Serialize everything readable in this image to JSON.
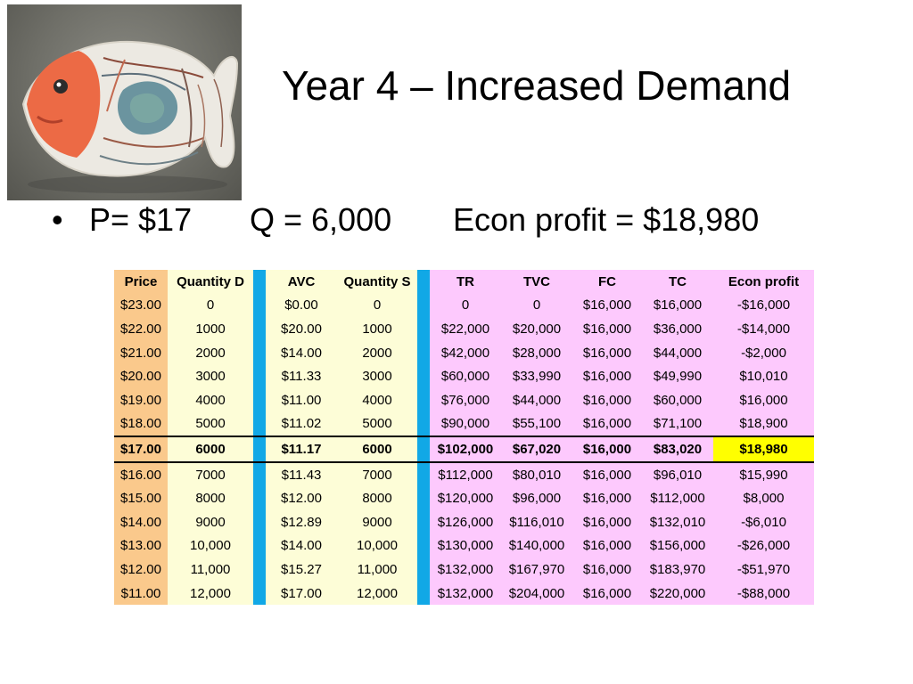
{
  "slide": {
    "title": "Year 4 – Increased Demand",
    "image_name": "ceramic-fish-sculpture"
  },
  "bullet": {
    "marker": "•",
    "price": "P= $17",
    "quantity": "Q = 6,000",
    "profit": "Econ profit = $18,980"
  },
  "table": {
    "headers": {
      "price": "Price",
      "qd": "Quantity D",
      "avc": "AVC",
      "qs": "Quantity S",
      "tr": "TR",
      "tvc": "TVC",
      "fc": "FC",
      "tc": "TC",
      "profit": "Econ profit"
    },
    "highlight_row": 6,
    "colors": {
      "price_column": "#fac98c",
      "light_columns": "#fdfdd7",
      "separator": "#11a8e6",
      "cost_columns": "#fdc9fd",
      "highlight": "#ffff00"
    },
    "rows": [
      {
        "price": "$23.00",
        "qd": "0",
        "avc": "$0.00",
        "qs": "0",
        "tr": "0",
        "tvc": "0",
        "fc": "$16,000",
        "tc": "$16,000",
        "profit": "-$16,000"
      },
      {
        "price": "$22.00",
        "qd": "1000",
        "avc": "$20.00",
        "qs": "1000",
        "tr": "$22,000",
        "tvc": "$20,000",
        "fc": "$16,000",
        "tc": "$36,000",
        "profit": "-$14,000"
      },
      {
        "price": "$21.00",
        "qd": "2000",
        "avc": "$14.00",
        "qs": "2000",
        "tr": "$42,000",
        "tvc": "$28,000",
        "fc": "$16,000",
        "tc": "$44,000",
        "profit": "-$2,000"
      },
      {
        "price": "$20.00",
        "qd": "3000",
        "avc": "$11.33",
        "qs": "3000",
        "tr": "$60,000",
        "tvc": "$33,990",
        "fc": "$16,000",
        "tc": "$49,990",
        "profit": "$10,010"
      },
      {
        "price": "$19.00",
        "qd": "4000",
        "avc": "$11.00",
        "qs": "4000",
        "tr": "$76,000",
        "tvc": "$44,000",
        "fc": "$16,000",
        "tc": "$60,000",
        "profit": "$16,000"
      },
      {
        "price": "$18.00",
        "qd": "5000",
        "avc": "$11.02",
        "qs": "5000",
        "tr": "$90,000",
        "tvc": "$55,100",
        "fc": "$16,000",
        "tc": "$71,100",
        "profit": "$18,900"
      },
      {
        "price": "$17.00",
        "qd": "6000",
        "avc": "$11.17",
        "qs": "6000",
        "tr": "$102,000",
        "tvc": "$67,020",
        "fc": "$16,000",
        "tc": "$83,020",
        "profit": "$18,980"
      },
      {
        "price": "$16.00",
        "qd": "7000",
        "avc": "$11.43",
        "qs": "7000",
        "tr": "$112,000",
        "tvc": "$80,010",
        "fc": "$16,000",
        "tc": "$96,010",
        "profit": "$15,990"
      },
      {
        "price": "$15.00",
        "qd": "8000",
        "avc": "$12.00",
        "qs": "8000",
        "tr": "$120,000",
        "tvc": "$96,000",
        "fc": "$16,000",
        "tc": "$112,000",
        "profit": "$8,000"
      },
      {
        "price": "$14.00",
        "qd": "9000",
        "avc": "$12.89",
        "qs": "9000",
        "tr": "$126,000",
        "tvc": "$116,010",
        "fc": "$16,000",
        "tc": "$132,010",
        "profit": "-$6,010"
      },
      {
        "price": "$13.00",
        "qd": "10,000",
        "avc": "$14.00",
        "qs": "10,000",
        "tr": "$130,000",
        "tvc": "$140,000",
        "fc": "$16,000",
        "tc": "$156,000",
        "profit": "-$26,000"
      },
      {
        "price": "$12.00",
        "qd": "11,000",
        "avc": "$15.27",
        "qs": "11,000",
        "tr": "$132,000",
        "tvc": "$167,970",
        "fc": "$16,000",
        "tc": "$183,970",
        "profit": "-$51,970"
      },
      {
        "price": "$11.00",
        "qd": "12,000",
        "avc": "$17.00",
        "qs": "12,000",
        "tr": "$132,000",
        "tvc": "$204,000",
        "fc": "$16,000",
        "tc": "$220,000",
        "profit": "-$88,000"
      }
    ]
  }
}
